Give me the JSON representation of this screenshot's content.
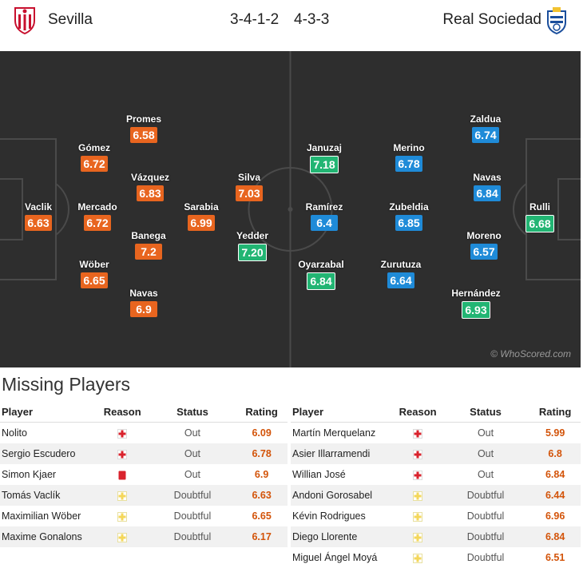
{
  "header": {
    "home_team": "Sevilla",
    "home_formation": "3-4-1-2",
    "away_formation": "4-3-3",
    "away_team": "Real Sociedad"
  },
  "pitch": {
    "watermark": "© WhoScored.com",
    "home_players": [
      {
        "name": "Vaclik",
        "rating": "6.63",
        "color": "orange"
      },
      {
        "name": "Gómez",
        "rating": "6.72",
        "color": "orange"
      },
      {
        "name": "Mercado",
        "rating": "6.72",
        "color": "orange"
      },
      {
        "name": "Wöber",
        "rating": "6.65",
        "color": "orange"
      },
      {
        "name": "Promes",
        "rating": "6.58",
        "color": "orange"
      },
      {
        "name": "Vázquez",
        "rating": "6.83",
        "color": "orange"
      },
      {
        "name": "Banega",
        "rating": "7.2",
        "color": "orange"
      },
      {
        "name": "Navas",
        "rating": "6.9",
        "color": "orange"
      },
      {
        "name": "Sarabia",
        "rating": "6.99",
        "color": "orange"
      },
      {
        "name": "Silva",
        "rating": "7.03",
        "color": "orange"
      },
      {
        "name": "Yedder",
        "rating": "7.20",
        "color": "green"
      }
    ],
    "away_players": [
      {
        "name": "Januzaj",
        "rating": "7.18",
        "color": "green"
      },
      {
        "name": "Ramírez",
        "rating": "6.4",
        "color": "blue"
      },
      {
        "name": "Oyarzabal",
        "rating": "6.84",
        "color": "green"
      },
      {
        "name": "Merino",
        "rating": "6.78",
        "color": "blue"
      },
      {
        "name": "Zubeldia",
        "rating": "6.85",
        "color": "blue"
      },
      {
        "name": "Zurutuza",
        "rating": "6.64",
        "color": "blue"
      },
      {
        "name": "Zaldua",
        "rating": "6.74",
        "color": "blue"
      },
      {
        "name": "Navas",
        "rating": "6.84",
        "color": "blue"
      },
      {
        "name": "Moreno",
        "rating": "6.57",
        "color": "blue"
      },
      {
        "name": "Hernández",
        "rating": "6.93",
        "color": "green"
      },
      {
        "name": "Rulli",
        "rating": "6.68",
        "color": "green"
      }
    ]
  },
  "missing": {
    "title": "Missing Players",
    "columns": [
      "Player",
      "Reason",
      "Status",
      "Rating"
    ],
    "home": [
      {
        "player": "Nolito",
        "reason": "injury",
        "status": "Out",
        "rating": "6.09"
      },
      {
        "player": "Sergio Escudero",
        "reason": "injury",
        "status": "Out",
        "rating": "6.78"
      },
      {
        "player": "Simon Kjaer",
        "reason": "red-card",
        "status": "Out",
        "rating": "6.9"
      },
      {
        "player": "Tomás Vaclík",
        "reason": "doubtful",
        "status": "Doubtful",
        "rating": "6.63"
      },
      {
        "player": "Maximilian Wöber",
        "reason": "doubtful",
        "status": "Doubtful",
        "rating": "6.65"
      },
      {
        "player": "Maxime Gonalons",
        "reason": "doubtful",
        "status": "Doubtful",
        "rating": "6.17"
      }
    ],
    "away": [
      {
        "player": "Martín Merquelanz",
        "reason": "injury",
        "status": "Out",
        "rating": "5.99"
      },
      {
        "player": "Asier Illarramendi",
        "reason": "injury",
        "status": "Out",
        "rating": "6.8"
      },
      {
        "player": "Willian José",
        "reason": "injury",
        "status": "Out",
        "rating": "6.84"
      },
      {
        "player": "Andoni Gorosabel",
        "reason": "doubtful",
        "status": "Doubtful",
        "rating": "6.44"
      },
      {
        "player": "Kévin Rodrigues",
        "reason": "doubtful",
        "status": "Doubtful",
        "rating": "6.96"
      },
      {
        "player": "Diego Llorente",
        "reason": "doubtful",
        "status": "Doubtful",
        "rating": "6.84"
      },
      {
        "player": "Miguel Ángel Moyá",
        "reason": "doubtful",
        "status": "Doubtful",
        "rating": "6.51"
      }
    ]
  },
  "colors": {
    "orange": "#e8651f",
    "blue": "#1f8bd8",
    "green": "#22b573",
    "pitch": "#2e2e2e"
  }
}
